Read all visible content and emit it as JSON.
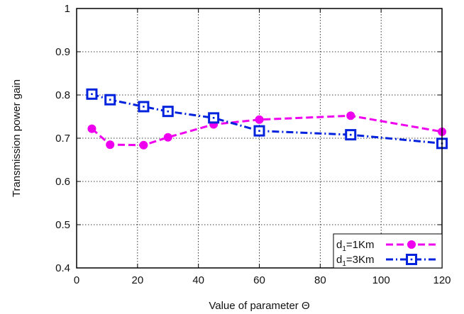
{
  "chart_data": {
    "type": "line",
    "title": "",
    "xlabel": "Value of parameter Θ",
    "ylabel": "Transmission power gain",
    "xlim": [
      0,
      120
    ],
    "ylim": [
      0.4,
      1.0
    ],
    "xticks": [
      0,
      20,
      40,
      60,
      80,
      100,
      120
    ],
    "yticks": [
      0.4,
      0.5,
      0.6,
      0.7,
      0.8,
      0.9,
      1.0
    ],
    "xtick_labels": [
      "0",
      "20",
      "40",
      "60",
      "80",
      "100",
      "120"
    ],
    "ytick_labels": [
      "0.4",
      "0.5",
      "0.6",
      "0.7",
      "0.8",
      "0.9",
      "1"
    ],
    "grid": true,
    "legend_position": "bottom-right",
    "series": [
      {
        "name": "d1=1Km",
        "legend_base": "d",
        "legend_sub": "1",
        "legend_rest": "=1Km",
        "color": "#ee00ee",
        "marker": "circle",
        "line_style": "dashed",
        "x": [
          5,
          11,
          22,
          30,
          45,
          60,
          90,
          120
        ],
        "y": [
          0.722,
          0.685,
          0.684,
          0.702,
          0.732,
          0.743,
          0.752,
          0.715
        ]
      },
      {
        "name": "d1=3Km",
        "legend_base": "d",
        "legend_sub": "1",
        "legend_rest": "=3Km",
        "color": "#0022dd",
        "marker": "square",
        "line_style": "dash-dot",
        "x": [
          5,
          11,
          22,
          30,
          45,
          60,
          90,
          120
        ],
        "y": [
          0.802,
          0.789,
          0.773,
          0.762,
          0.747,
          0.717,
          0.708,
          0.688
        ]
      }
    ]
  }
}
